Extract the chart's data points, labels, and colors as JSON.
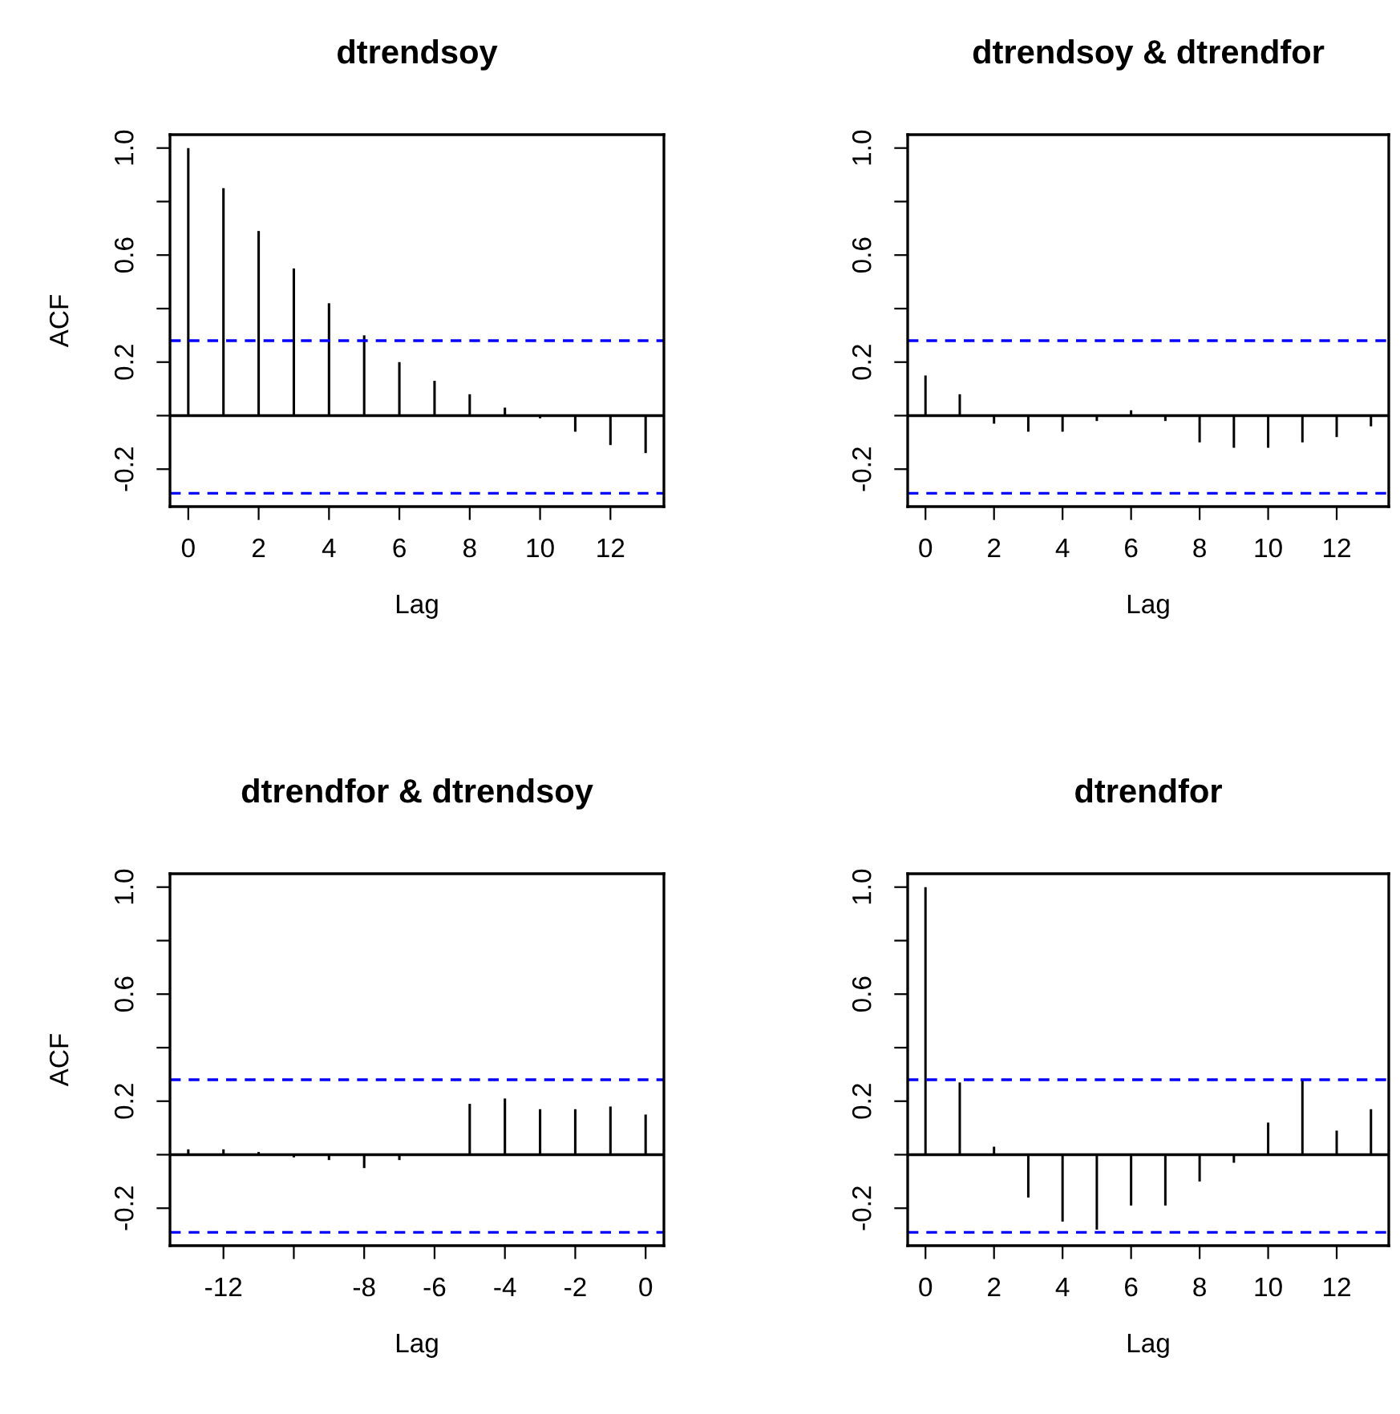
{
  "chart_data": [
    {
      "type": "bar",
      "title": "dtrendsoy",
      "xlabel": "Lag",
      "ylabel": "ACF",
      "x": [
        0,
        1,
        2,
        3,
        4,
        5,
        6,
        7,
        8,
        9,
        10,
        11,
        12,
        13
      ],
      "values": [
        1.0,
        0.85,
        0.69,
        0.55,
        0.42,
        0.3,
        0.2,
        0.13,
        0.08,
        0.03,
        -0.01,
        -0.06,
        -0.11,
        -0.14
      ],
      "color": "#000000",
      "xlim": [
        -0.52,
        13.52
      ],
      "xticks": [
        0,
        2,
        4,
        6,
        8,
        10,
        12
      ],
      "ylim": [
        -0.34,
        1.05
      ],
      "yticks": [
        {
          "value": -0.2,
          "label": "-0.2"
        },
        {
          "value": 0,
          "label": null
        },
        {
          "value": 0.2,
          "label": "0.2"
        },
        {
          "value": 0.4,
          "label": null
        },
        {
          "value": 0.6,
          "label": "0.6"
        },
        {
          "value": 0.8,
          "label": null
        },
        {
          "value": 1.0,
          "label": "1.0"
        }
      ],
      "ref_lines": [
        {
          "axis": "y",
          "value": 0,
          "color": "#000000",
          "line_style": "solid"
        },
        {
          "axis": "y",
          "value": 0.28,
          "color": "#0000ff",
          "line_style": "dashed"
        },
        {
          "axis": "y",
          "value": -0.29,
          "color": "#0000ff",
          "line_style": "dashed"
        }
      ]
    },
    {
      "type": "bar",
      "title": "dtrendsoy & dtrendfor",
      "xlabel": "Lag",
      "x": [
        0,
        1,
        2,
        3,
        4,
        5,
        6,
        7,
        8,
        9,
        10,
        11,
        12,
        13
      ],
      "values": [
        0.15,
        0.08,
        -0.03,
        -0.06,
        -0.06,
        -0.02,
        0.02,
        -0.02,
        -0.1,
        -0.12,
        -0.12,
        -0.1,
        -0.08,
        -0.04
      ],
      "color": "#000000",
      "xlim": [
        -0.52,
        13.52
      ],
      "xticks": [
        0,
        2,
        4,
        6,
        8,
        10,
        12
      ],
      "ylim": [
        -0.34,
        1.05
      ],
      "yticks": [
        {
          "value": -0.2,
          "label": "-0.2"
        },
        {
          "value": 0,
          "label": null
        },
        {
          "value": 0.2,
          "label": "0.2"
        },
        {
          "value": 0.4,
          "label": null
        },
        {
          "value": 0.6,
          "label": "0.6"
        },
        {
          "value": 0.8,
          "label": null
        },
        {
          "value": 1.0,
          "label": "1.0"
        }
      ],
      "ref_lines": [
        {
          "axis": "y",
          "value": 0,
          "color": "#000000",
          "line_style": "solid"
        },
        {
          "axis": "y",
          "value": 0.28,
          "color": "#0000ff",
          "line_style": "dashed"
        },
        {
          "axis": "y",
          "value": -0.29,
          "color": "#0000ff",
          "line_style": "dashed"
        }
      ]
    },
    {
      "type": "bar",
      "title": "dtrendfor & dtrendsoy",
      "xlabel": "Lag",
      "ylabel": "ACF",
      "x": [
        -13,
        -12,
        -11,
        -10,
        -9,
        -8,
        -7,
        -6,
        -5,
        -4,
        -3,
        -2,
        -1,
        0
      ],
      "values": [
        0.02,
        0.02,
        0.01,
        -0.01,
        -0.02,
        -0.05,
        -0.02,
        0.0,
        0.19,
        0.21,
        0.17,
        0.17,
        0.18,
        0.15
      ],
      "color": "#000000",
      "xlim": [
        -13.52,
        0.52
      ],
      "xticks": [
        -12,
        {
          "value": -10,
          "label": null
        },
        -8,
        -6,
        -4,
        -2,
        0
      ],
      "ylim": [
        -0.34,
        1.05
      ],
      "yticks": [
        {
          "value": -0.2,
          "label": "-0.2"
        },
        {
          "value": 0,
          "label": null
        },
        {
          "value": 0.2,
          "label": "0.2"
        },
        {
          "value": 0.4,
          "label": null
        },
        {
          "value": 0.6,
          "label": "0.6"
        },
        {
          "value": 0.8,
          "label": null
        },
        {
          "value": 1.0,
          "label": "1.0"
        }
      ],
      "ref_lines": [
        {
          "axis": "y",
          "value": 0,
          "color": "#000000",
          "line_style": "solid"
        },
        {
          "axis": "y",
          "value": 0.28,
          "color": "#0000ff",
          "line_style": "dashed"
        },
        {
          "axis": "y",
          "value": -0.29,
          "color": "#0000ff",
          "line_style": "dashed"
        }
      ]
    },
    {
      "type": "bar",
      "title": "dtrendfor",
      "xlabel": "Lag",
      "x": [
        0,
        1,
        2,
        3,
        4,
        5,
        6,
        7,
        8,
        9,
        10,
        11,
        12,
        13
      ],
      "values": [
        1.0,
        0.27,
        0.03,
        -0.16,
        -0.25,
        -0.28,
        -0.19,
        -0.19,
        -0.1,
        -0.03,
        0.12,
        0.28,
        0.09,
        0.17
      ],
      "color": "#000000",
      "xlim": [
        -0.52,
        13.52
      ],
      "xticks": [
        0,
        2,
        4,
        6,
        8,
        10,
        12
      ],
      "ylim": [
        -0.34,
        1.05
      ],
      "yticks": [
        {
          "value": -0.2,
          "label": "-0.2"
        },
        {
          "value": 0,
          "label": null
        },
        {
          "value": 0.2,
          "label": "0.2"
        },
        {
          "value": 0.4,
          "label": null
        },
        {
          "value": 0.6,
          "label": "0.6"
        },
        {
          "value": 0.8,
          "label": null
        },
        {
          "value": 1.0,
          "label": "1.0"
        }
      ],
      "ref_lines": [
        {
          "axis": "y",
          "value": 0,
          "color": "#000000",
          "line_style": "solid"
        },
        {
          "axis": "y",
          "value": 0.28,
          "color": "#0000ff",
          "line_style": "dashed"
        },
        {
          "axis": "y",
          "value": -0.29,
          "color": "#0000ff",
          "line_style": "dashed"
        }
      ]
    }
  ]
}
